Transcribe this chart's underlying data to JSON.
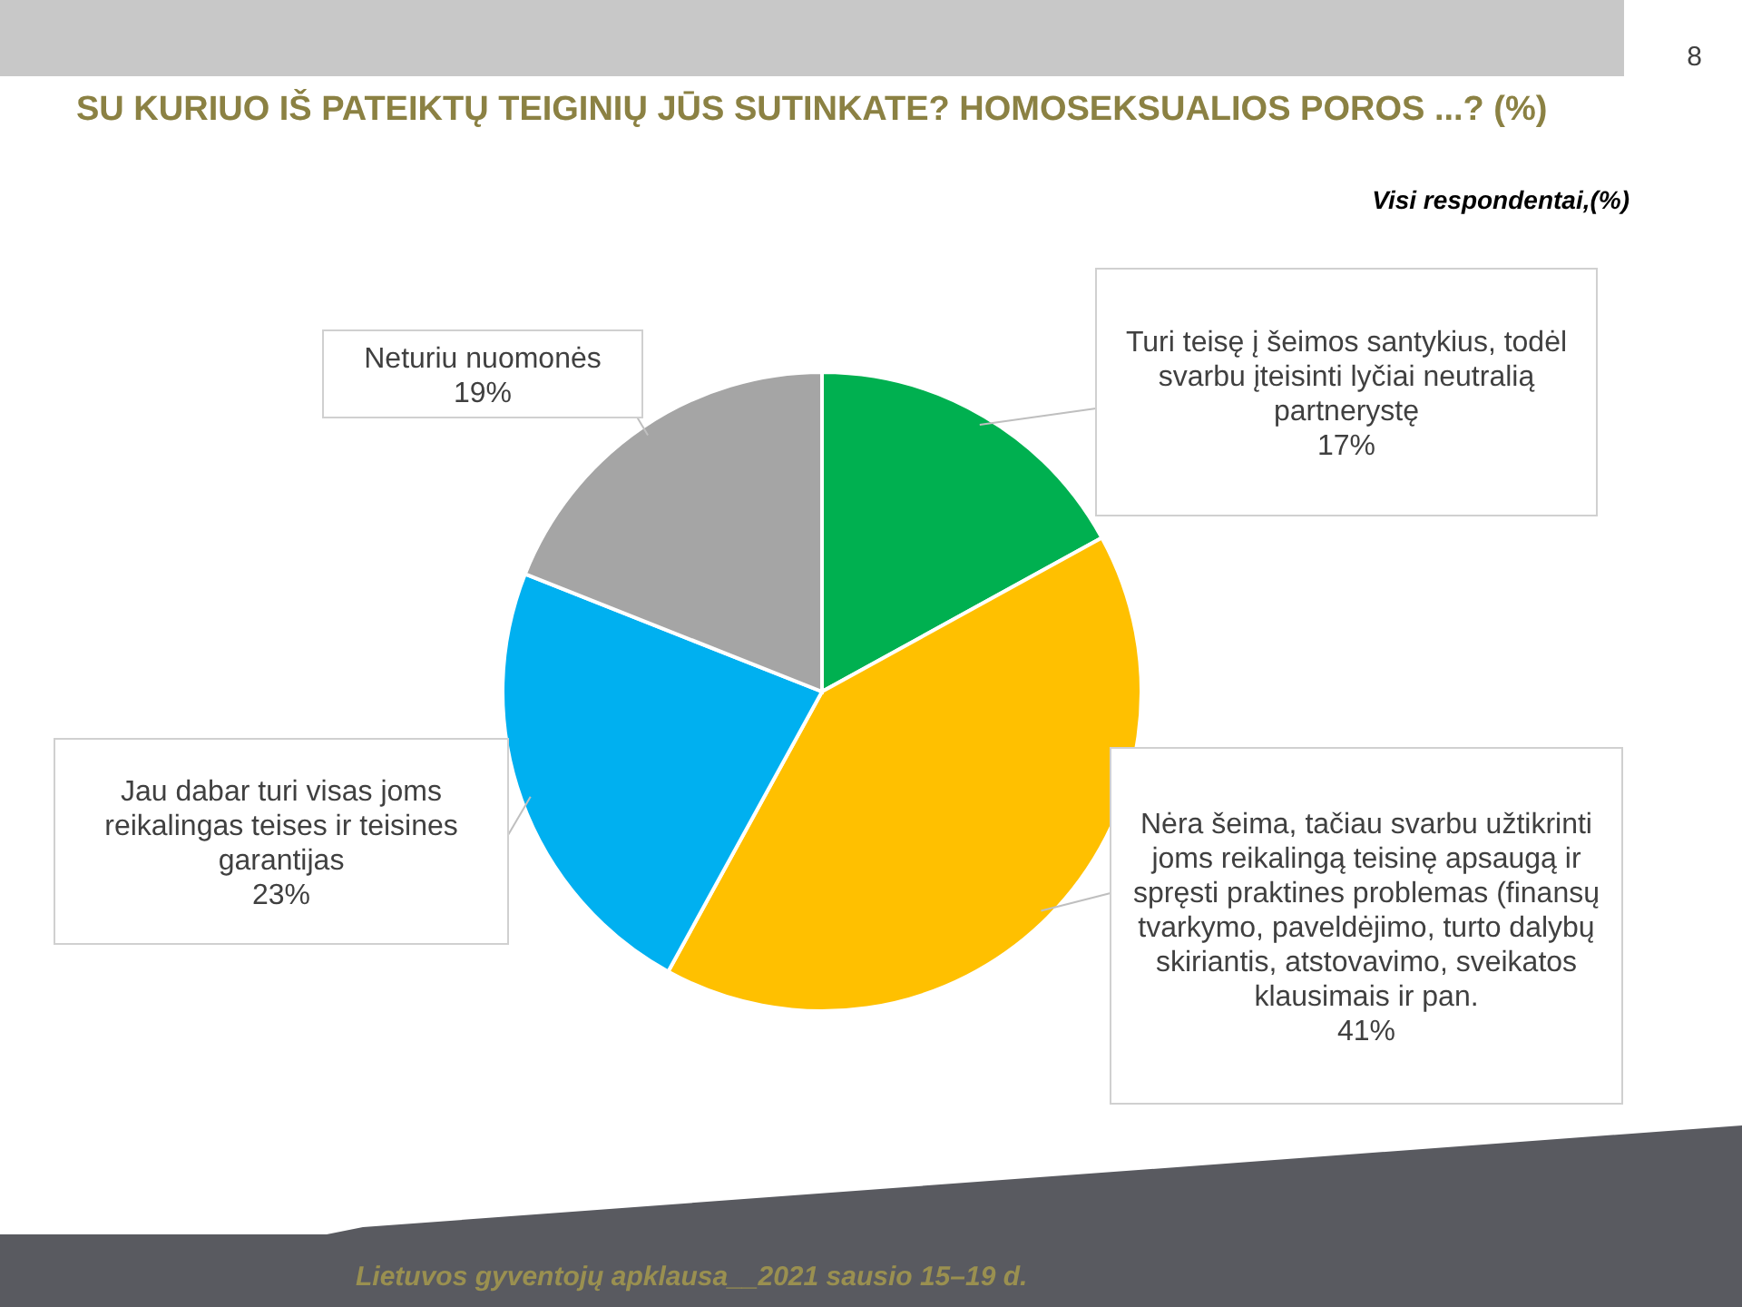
{
  "chart_data": {
    "type": "pie",
    "title": "SU KURIUO IŠ PATEIKTŲ TEIGINIŲ JŪS SUTINKATE? HOMOSEKSUALIOS POROS ...? (%)",
    "subtitle": "Visi respondentai,(%)",
    "categories": [
      "Turi teisę į šeimos santykius, todėl svarbu įteisinti lyčiai neutralią partnerystę",
      "Nėra šeima, tačiau svarbu užtikrinti joms reikalingą teisinę apsaugą ir spręsti praktines problemas (finansų tvarkymo, paveldėjimo, turto dalybų skiriantis, atstovavimo, sveikatos klausimais ir pan.",
      "Jau dabar turi visas joms reikalingas teises ir teisines garantijas",
      "Neturiu nuomonės"
    ],
    "values": [
      17,
      41,
      23,
      19
    ],
    "value_labels": [
      "17%",
      "41%",
      "23%",
      "19%"
    ],
    "colors": [
      "#00b050",
      "#ffc000",
      "#00b0f0",
      "#a5a5a5"
    ],
    "annotations": [
      "8",
      "Lietuvos gyventojų apklausa__2021 sausio 15–19 d."
    ]
  }
}
